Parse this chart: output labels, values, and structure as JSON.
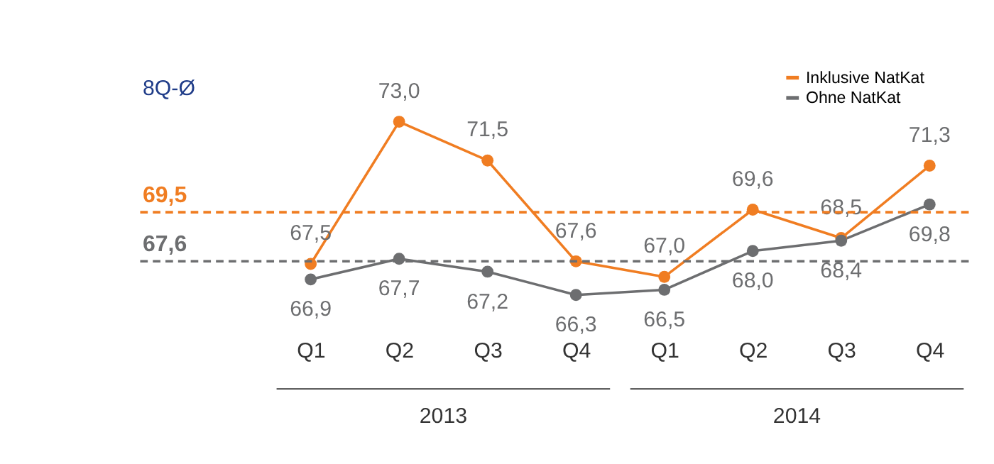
{
  "chart_data": {
    "type": "line",
    "categories": [
      "Q1",
      "Q2",
      "Q3",
      "Q4",
      "Q1",
      "Q2",
      "Q3",
      "Q4"
    ],
    "series": [
      {
        "name": "Inklusive NatKat",
        "color": "#f07d22",
        "values": [
          67.5,
          73.0,
          71.5,
          67.6,
          67.0,
          69.6,
          68.5,
          71.3
        ],
        "value_labels": [
          "67,5",
          "73,0",
          "71,5",
          "67,6",
          "67,0",
          "69,6",
          "68,5",
          "71,3"
        ]
      },
      {
        "name": "Ohne NatKat",
        "color": "#6d6e70",
        "values": [
          66.9,
          67.7,
          67.2,
          66.3,
          66.5,
          68.0,
          68.4,
          69.8
        ],
        "value_labels": [
          "66,9",
          "67,7",
          "67,2",
          "66,3",
          "66,5",
          "68,0",
          "68,4",
          "69,8"
        ]
      }
    ],
    "ref_lines": [
      {
        "axis": "y",
        "value": 69.5,
        "label": "69,5",
        "color": "#f07d22",
        "line_style": "dashed"
      },
      {
        "axis": "y",
        "value": 67.6,
        "label": "67,6",
        "color": "#6d6e70",
        "line_style": "dashed"
      }
    ],
    "annotations": [
      "8Q-Ø",
      "2013",
      "2014"
    ],
    "marker": "circle",
    "legend": "top right",
    "grid": false,
    "tick_labels": "x"
  }
}
